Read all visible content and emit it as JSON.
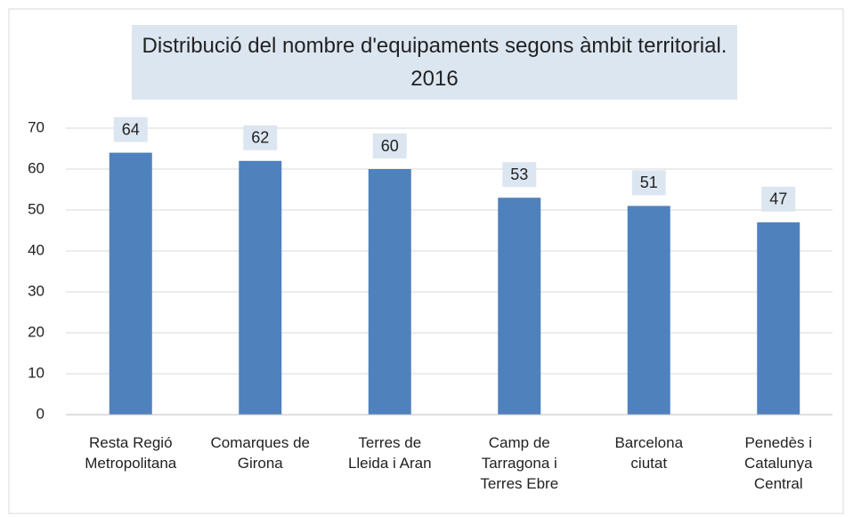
{
  "chart_data": {
    "type": "bar",
    "title": "Distribució del nombre d'equipaments segons àmbit territorial. 2016",
    "categories": [
      "Resta Regió Metropolitana",
      "Comarques de Girona",
      "Terres de Lleida i Aran",
      "Camp de Tarragona i Terres Ebre",
      "Barcelona ciutat",
      "Penedès i Catalunya Central"
    ],
    "values": [
      64,
      62,
      60,
      53,
      51,
      47
    ],
    "color": "#4f81bd",
    "ylim": [
      0,
      70
    ],
    "yticks": [
      0,
      10,
      20,
      30,
      40,
      50,
      60,
      70
    ],
    "grid": true
  }
}
